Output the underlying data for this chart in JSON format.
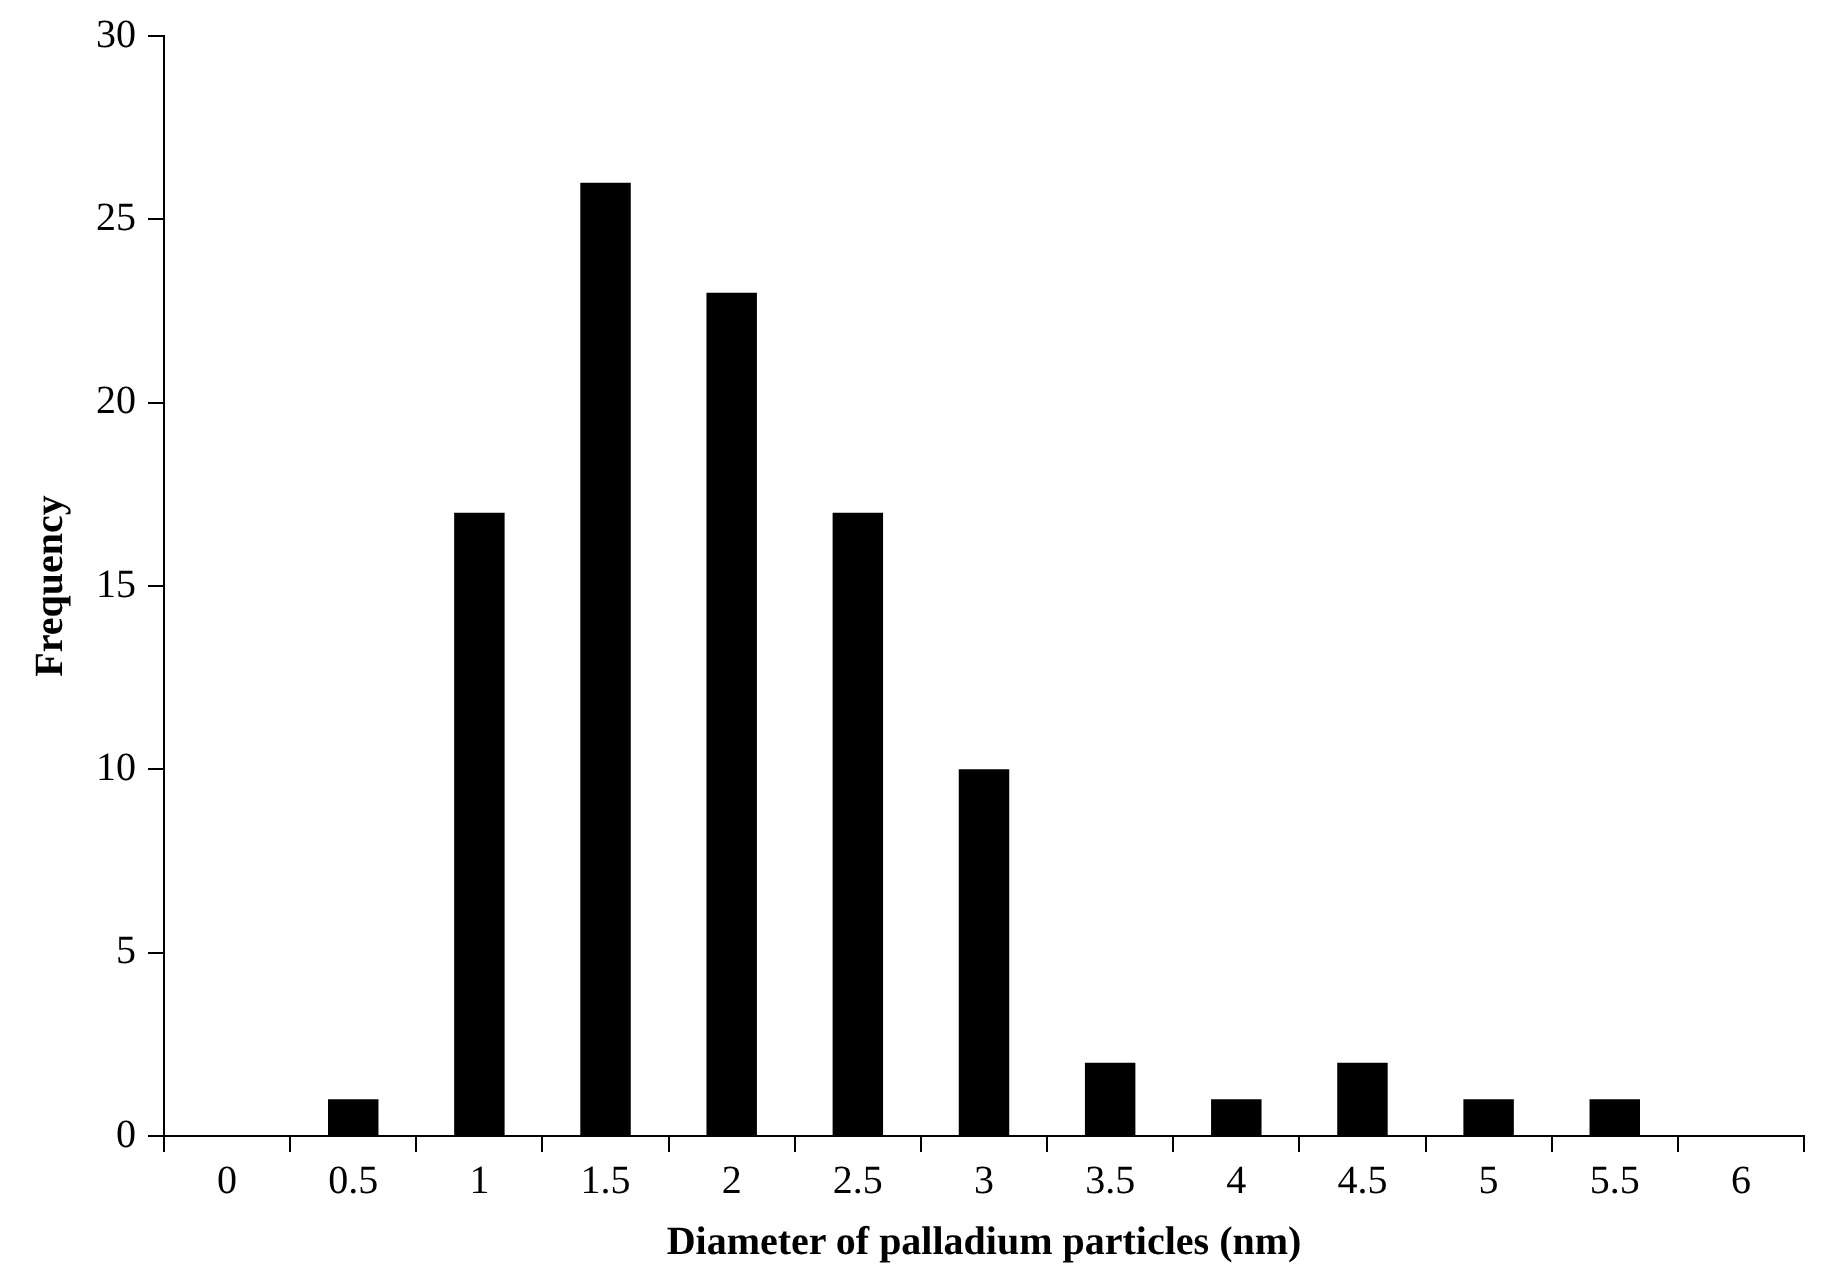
{
  "chart_data": {
    "type": "bar",
    "xlabel": "Diameter of palladium particles (nm)",
    "ylabel": "Frequency",
    "categories": [
      "0",
      "0.5",
      "1",
      "1.5",
      "2",
      "2.5",
      "3",
      "3.5",
      "4",
      "4.5",
      "5",
      "5.5",
      "6"
    ],
    "values": [
      0,
      1,
      17,
      26,
      23,
      17,
      10,
      2,
      1,
      2,
      1,
      1,
      0
    ],
    "color": "#000000",
    "ylim": [
      0,
      30
    ],
    "yticks": [
      0,
      5,
      10,
      15,
      20,
      25,
      30
    ],
    "grid": false,
    "legend": false
  }
}
